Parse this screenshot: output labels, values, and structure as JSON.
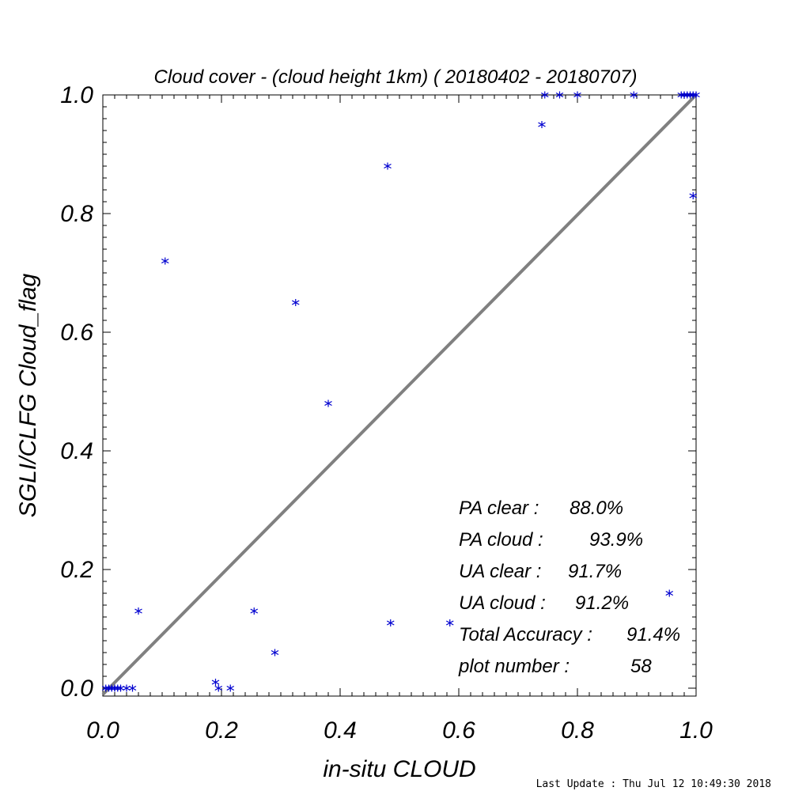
{
  "chart_data": {
    "type": "scatter",
    "title": "Cloud cover - (cloud height 1km) ( 20180402 - 20180707)",
    "xlabel": "in-situ CLOUD",
    "ylabel": "SGLI/CLFG Cloud_flag",
    "xlim": [
      0.0,
      1.0
    ],
    "ylim": [
      0.0,
      1.0
    ],
    "x_ticks": [
      "0.0",
      "0.2",
      "0.4",
      "0.6",
      "0.8",
      "1.0"
    ],
    "y_ticks": [
      "0.0",
      "0.2",
      "0.4",
      "0.6",
      "0.8",
      "1.0"
    ],
    "grid": false,
    "reference_line": {
      "from": [
        0,
        0
      ],
      "to": [
        1,
        1
      ],
      "color": "#808080"
    },
    "marker_color": "#0000d0",
    "points": [
      {
        "x": 0.005,
        "y": 0.0
      },
      {
        "x": 0.01,
        "y": 0.0
      },
      {
        "x": 0.015,
        "y": 0.0
      },
      {
        "x": 0.02,
        "y": 0.0
      },
      {
        "x": 0.025,
        "y": 0.0
      },
      {
        "x": 0.03,
        "y": 0.0
      },
      {
        "x": 0.04,
        "y": 0.0
      },
      {
        "x": 0.05,
        "y": 0.0
      },
      {
        "x": 0.06,
        "y": 0.13
      },
      {
        "x": 0.105,
        "y": 0.72
      },
      {
        "x": 0.19,
        "y": 0.01
      },
      {
        "x": 0.195,
        "y": 0.0
      },
      {
        "x": 0.215,
        "y": 0.0
      },
      {
        "x": 0.255,
        "y": 0.13
      },
      {
        "x": 0.29,
        "y": 0.06
      },
      {
        "x": 0.325,
        "y": 0.65
      },
      {
        "x": 0.38,
        "y": 0.48
      },
      {
        "x": 0.48,
        "y": 0.88
      },
      {
        "x": 0.485,
        "y": 0.11
      },
      {
        "x": 0.585,
        "y": 0.11
      },
      {
        "x": 0.74,
        "y": 0.95
      },
      {
        "x": 0.745,
        "y": 1.0
      },
      {
        "x": 0.77,
        "y": 1.0
      },
      {
        "x": 0.8,
        "y": 1.0
      },
      {
        "x": 0.895,
        "y": 1.0
      },
      {
        "x": 0.955,
        "y": 0.16
      },
      {
        "x": 0.975,
        "y": 1.0
      },
      {
        "x": 0.98,
        "y": 1.0
      },
      {
        "x": 0.985,
        "y": 1.0
      },
      {
        "x": 0.99,
        "y": 1.0
      },
      {
        "x": 0.995,
        "y": 1.0
      },
      {
        "x": 1.0,
        "y": 1.0
      },
      {
        "x": 0.995,
        "y": 0.83
      }
    ],
    "stats": [
      {
        "label": "PA clear :",
        "value": "88.0%"
      },
      {
        "label": "PA cloud :",
        "value": "93.9%"
      },
      {
        "label": "UA clear :",
        "value": "91.7%"
      },
      {
        "label": "UA cloud :",
        "value": "91.2%"
      },
      {
        "label": "Total Accuracy :",
        "value": "91.4%"
      },
      {
        "label": "plot number :",
        "value": "58"
      }
    ]
  },
  "footer": {
    "last_update": "Last Update : Thu Jul 12 10:49:30 2018"
  }
}
